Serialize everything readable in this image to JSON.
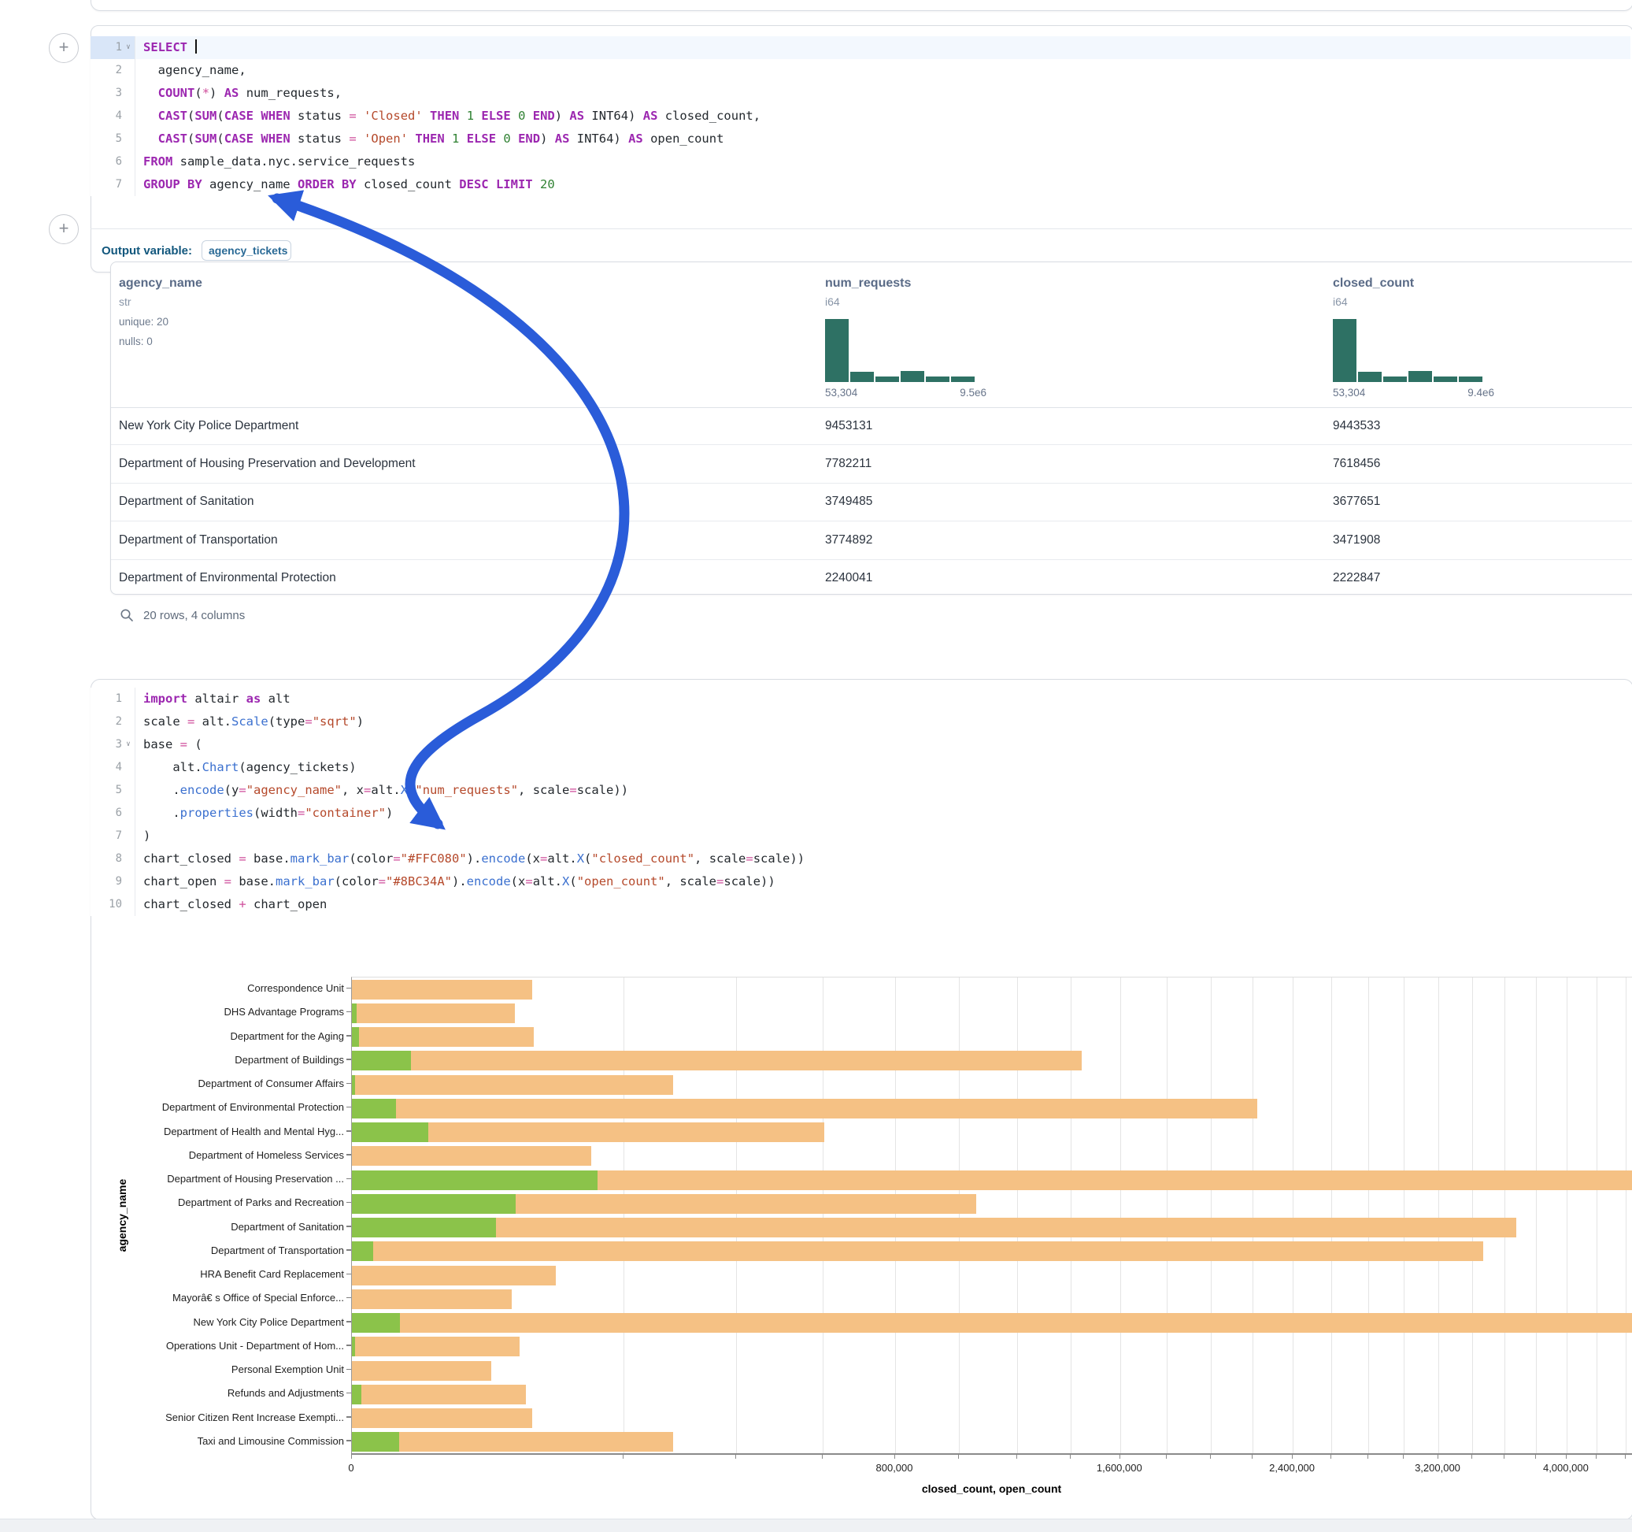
{
  "sql_cell": {
    "output_label": "Output variable:",
    "output_variable": "agency_tickets",
    "lines": [
      {
        "n": "1",
        "chev": true,
        "active": true,
        "tok": [
          [
            "kw",
            "SELECT"
          ],
          [
            "pl",
            " "
          ],
          [
            "caret",
            ""
          ]
        ]
      },
      {
        "n": "2",
        "tok": [
          [
            "pl",
            "  agency_name,"
          ]
        ]
      },
      {
        "n": "3",
        "tok": [
          [
            "pl",
            "  "
          ],
          [
            "kw",
            "COUNT"
          ],
          [
            "pl",
            "("
          ],
          [
            "op",
            "*"
          ],
          [
            "pl",
            ") "
          ],
          [
            "kw",
            "AS"
          ],
          [
            "pl",
            " num_requests,"
          ]
        ]
      },
      {
        "n": "4",
        "tok": [
          [
            "pl",
            "  "
          ],
          [
            "kw",
            "CAST"
          ],
          [
            "pl",
            "("
          ],
          [
            "kw",
            "SUM"
          ],
          [
            "pl",
            "("
          ],
          [
            "kw",
            "CASE"
          ],
          [
            "pl",
            " "
          ],
          [
            "kw",
            "WHEN"
          ],
          [
            "pl",
            " status "
          ],
          [
            "op",
            "="
          ],
          [
            "pl",
            " "
          ],
          [
            "str",
            "'Closed'"
          ],
          [
            "pl",
            " "
          ],
          [
            "kw",
            "THEN"
          ],
          [
            "pl",
            " "
          ],
          [
            "num",
            "1"
          ],
          [
            "pl",
            " "
          ],
          [
            "kw",
            "ELSE"
          ],
          [
            "pl",
            " "
          ],
          [
            "num",
            "0"
          ],
          [
            "pl",
            " "
          ],
          [
            "kw",
            "END"
          ],
          [
            "pl",
            ") "
          ],
          [
            "kw",
            "AS"
          ],
          [
            "pl",
            " INT64) "
          ],
          [
            "kw",
            "AS"
          ],
          [
            "pl",
            " closed_count,"
          ]
        ]
      },
      {
        "n": "5",
        "tok": [
          [
            "pl",
            "  "
          ],
          [
            "kw",
            "CAST"
          ],
          [
            "pl",
            "("
          ],
          [
            "kw",
            "SUM"
          ],
          [
            "pl",
            "("
          ],
          [
            "kw",
            "CASE"
          ],
          [
            "pl",
            " "
          ],
          [
            "kw",
            "WHEN"
          ],
          [
            "pl",
            " status "
          ],
          [
            "op",
            "="
          ],
          [
            "pl",
            " "
          ],
          [
            "str",
            "'Open'"
          ],
          [
            "pl",
            " "
          ],
          [
            "kw",
            "THEN"
          ],
          [
            "pl",
            " "
          ],
          [
            "num",
            "1"
          ],
          [
            "pl",
            " "
          ],
          [
            "kw",
            "ELSE"
          ],
          [
            "pl",
            " "
          ],
          [
            "num",
            "0"
          ],
          [
            "pl",
            " "
          ],
          [
            "kw",
            "END"
          ],
          [
            "pl",
            ") "
          ],
          [
            "kw",
            "AS"
          ],
          [
            "pl",
            " INT64) "
          ],
          [
            "kw",
            "AS"
          ],
          [
            "pl",
            " open_count"
          ]
        ]
      },
      {
        "n": "6",
        "tok": [
          [
            "kw",
            "FROM"
          ],
          [
            "pl",
            " sample_data.nyc.service_requests"
          ]
        ]
      },
      {
        "n": "7",
        "tok": [
          [
            "kw",
            "GROUP BY"
          ],
          [
            "pl",
            " agency_name "
          ],
          [
            "kw",
            "ORDER BY"
          ],
          [
            "pl",
            " closed_count "
          ],
          [
            "kw",
            "DESC"
          ],
          [
            "pl",
            " "
          ],
          [
            "kw",
            "LIMIT"
          ],
          [
            "pl",
            " "
          ],
          [
            "num",
            "20"
          ]
        ]
      }
    ]
  },
  "python_cell": {
    "lines": [
      {
        "n": "1",
        "tok": [
          [
            "kw",
            "import"
          ],
          [
            "pl",
            " altair "
          ],
          [
            "kw",
            "as"
          ],
          [
            "pl",
            " alt"
          ]
        ]
      },
      {
        "n": "2",
        "tok": [
          [
            "pl",
            "scale "
          ],
          [
            "op",
            "="
          ],
          [
            "pl",
            " alt."
          ],
          [
            "fn",
            "Scale"
          ],
          [
            "pl",
            "(type"
          ],
          [
            "op",
            "="
          ],
          [
            "str",
            "\"sqrt\""
          ],
          [
            "pl",
            ")"
          ]
        ]
      },
      {
        "n": "3",
        "chev": true,
        "tok": [
          [
            "pl",
            "base "
          ],
          [
            "op",
            "="
          ],
          [
            "pl",
            " ("
          ]
        ]
      },
      {
        "n": "4",
        "tok": [
          [
            "pl",
            "    alt."
          ],
          [
            "fn",
            "Chart"
          ],
          [
            "pl",
            "(agency_tickets)"
          ]
        ]
      },
      {
        "n": "5",
        "tok": [
          [
            "pl",
            "    ."
          ],
          [
            "fn",
            "encode"
          ],
          [
            "pl",
            "(y"
          ],
          [
            "op",
            "="
          ],
          [
            "str",
            "\"agency_name\""
          ],
          [
            "pl",
            ", x"
          ],
          [
            "op",
            "="
          ],
          [
            "pl",
            "alt."
          ],
          [
            "fn",
            "X"
          ],
          [
            "pl",
            "("
          ],
          [
            "str",
            "\"num_requests\""
          ],
          [
            "pl",
            ", scale"
          ],
          [
            "op",
            "="
          ],
          [
            "pl",
            "scale))"
          ]
        ]
      },
      {
        "n": "6",
        "tok": [
          [
            "pl",
            "    ."
          ],
          [
            "fn",
            "properties"
          ],
          [
            "pl",
            "(width"
          ],
          [
            "op",
            "="
          ],
          [
            "str",
            "\"container\""
          ],
          [
            "pl",
            ")"
          ]
        ]
      },
      {
        "n": "7",
        "tok": [
          [
            "pl",
            ")"
          ]
        ]
      },
      {
        "n": "8",
        "tok": [
          [
            "pl",
            "chart_closed "
          ],
          [
            "op",
            "="
          ],
          [
            "pl",
            " base."
          ],
          [
            "fn",
            "mark_bar"
          ],
          [
            "pl",
            "(color"
          ],
          [
            "op",
            "="
          ],
          [
            "str",
            "\"#FFC080\""
          ],
          [
            "pl",
            ")."
          ],
          [
            "fn",
            "encode"
          ],
          [
            "pl",
            "(x"
          ],
          [
            "op",
            "="
          ],
          [
            "pl",
            "alt."
          ],
          [
            "fn",
            "X"
          ],
          [
            "pl",
            "("
          ],
          [
            "str",
            "\"closed_count\""
          ],
          [
            "pl",
            ", scale"
          ],
          [
            "op",
            "="
          ],
          [
            "pl",
            "scale))"
          ]
        ]
      },
      {
        "n": "9",
        "tok": [
          [
            "pl",
            "chart_open "
          ],
          [
            "op",
            "="
          ],
          [
            "pl",
            " base."
          ],
          [
            "fn",
            "mark_bar"
          ],
          [
            "pl",
            "(color"
          ],
          [
            "op",
            "="
          ],
          [
            "str",
            "\"#8BC34A\""
          ],
          [
            "pl",
            ")."
          ],
          [
            "fn",
            "encode"
          ],
          [
            "pl",
            "(x"
          ],
          [
            "op",
            "="
          ],
          [
            "pl",
            "alt."
          ],
          [
            "fn",
            "X"
          ],
          [
            "pl",
            "("
          ],
          [
            "str",
            "\"open_count\""
          ],
          [
            "pl",
            ", scale"
          ],
          [
            "op",
            "="
          ],
          [
            "pl",
            "scale))"
          ]
        ]
      },
      {
        "n": "10",
        "tok": [
          [
            "pl",
            "chart_closed "
          ],
          [
            "op",
            "+"
          ],
          [
            "pl",
            " chart_open"
          ]
        ]
      }
    ]
  },
  "table": {
    "footer": "20 rows, 4 columns",
    "columns": [
      {
        "name": "agency_name",
        "type": "str",
        "stats": [
          "unique: 20",
          "nulls: 0"
        ]
      },
      {
        "name": "num_requests",
        "type": "i64",
        "hist": {
          "bins": [
            1,
            0.16,
            0.09,
            0.17,
            0.09,
            0.09
          ],
          "min": "53,304",
          "max": "9.5e6"
        }
      },
      {
        "name": "closed_count",
        "type": "i64",
        "hist": {
          "bins": [
            1,
            0.16,
            0.09,
            0.17,
            0.09,
            0.09
          ],
          "min": "53,304",
          "max": "9.4e6"
        }
      }
    ],
    "rows": [
      [
        "New York City Police Department",
        "9453131",
        "9443533"
      ],
      [
        "Department of Housing Preservation and Development",
        "7782211",
        "7618456"
      ],
      [
        "Department of Sanitation",
        "3749485",
        "3677651"
      ],
      [
        "Department of Transportation",
        "3774892",
        "3471908"
      ],
      [
        "Department of Environmental Protection",
        "2240041",
        "2222847"
      ]
    ],
    "hist_color": "#2e7164"
  },
  "chart_data": {
    "type": "bar",
    "orientation": "horizontal",
    "xlabel": "closed_count, open_count",
    "ylabel": "agency_name",
    "x_scale": "sqrt",
    "grid": true,
    "grid_step": 200000,
    "x_ticks": [
      0,
      800000,
      1600000,
      2400000,
      3200000,
      4000000
    ],
    "x_tick_labels": [
      "0",
      "800,000",
      "1,600,000",
      "2,400,000",
      "3,200,000",
      "4,000,000"
    ],
    "categories": [
      "Correspondence Unit",
      "DHS Advantage Programs",
      "Department for the Aging",
      "Department of Buildings",
      "Department of Consumer Affairs",
      "Department of Environmental Protection",
      "Department of Health and Mental Hyg...",
      "Department of Homeless Services",
      "Department of Housing Preservation ...",
      "Department of Parks and Recreation",
      "Department of Sanitation",
      "Department of Transportation",
      "HRA Benefit Card Replacement",
      "Mayorâ€ s Office of Special Enforce...",
      "New York City Police Department",
      "Operations Unit - Department of Hom...",
      "Personal Exemption Unit",
      "Refunds and Adjustments",
      "Senior Citizen Rent Increase Exempti...",
      "Taxi and Limousine Commission"
    ],
    "series": [
      {
        "name": "closed_count",
        "color": "#F5C184",
        "values": [
          88000,
          72000,
          90000,
          1443000,
          280000,
          2222847,
          604000,
          155000,
          7618456,
          1056000,
          3677651,
          3471908,
          113000,
          69000,
          9443533,
          76000,
          52600,
          82000,
          88000,
          280000
        ]
      },
      {
        "name": "open_count",
        "color": "#8BC34A",
        "values": [
          0,
          60,
          120,
          9400,
          30,
          5200,
          15800,
          0,
          164000,
          72500,
          56000,
          1200,
          0,
          0,
          6300,
          30,
          0,
          230,
          0,
          6000
        ]
      }
    ]
  },
  "annotation_arrow": {
    "color": "#2a5cd9"
  }
}
